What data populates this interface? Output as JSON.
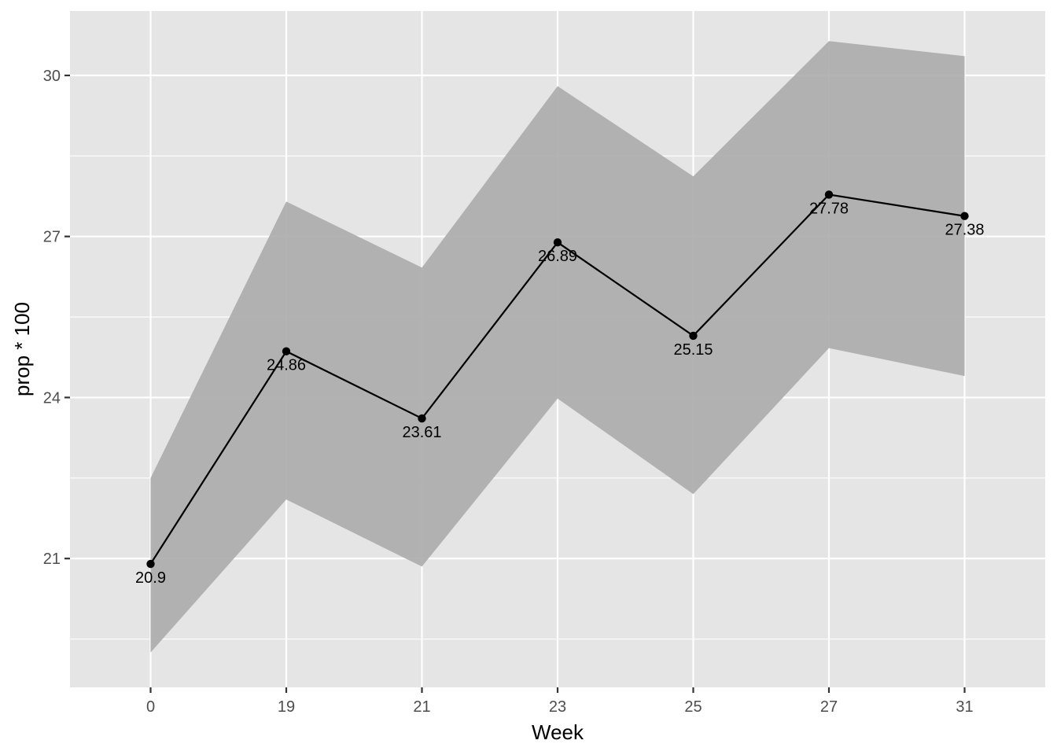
{
  "chart_data": {
    "type": "line",
    "xlabel": "Week",
    "ylabel": "prop * 100",
    "categories": [
      "0",
      "19",
      "21",
      "23",
      "25",
      "27",
      "31"
    ],
    "series": [
      {
        "values": [
          20.9,
          24.86,
          23.61,
          26.89,
          25.15,
          27.78,
          27.38
        ],
        "labels": [
          "20.9",
          "24.86",
          "23.61",
          "26.89",
          "25.15",
          "27.78",
          "27.38"
        ],
        "ribbon_lower": [
          19.25,
          22.1,
          20.85,
          23.98,
          22.2,
          24.92,
          24.4
        ],
        "ribbon_upper": [
          22.5,
          27.65,
          26.42,
          29.8,
          28.12,
          30.64,
          30.36
        ]
      }
    ],
    "ylim": [
      18.6,
      31.2
    ],
    "yticks": [
      21,
      24,
      27,
      30
    ],
    "ytick_labels": [
      "21",
      "24",
      "27",
      "30"
    ],
    "grid": true,
    "colors": {
      "panel_background": "#e5e5e5",
      "grid": "#ffffff",
      "ribbon": "#ababab",
      "line": "#000000",
      "points": "#000000"
    }
  }
}
